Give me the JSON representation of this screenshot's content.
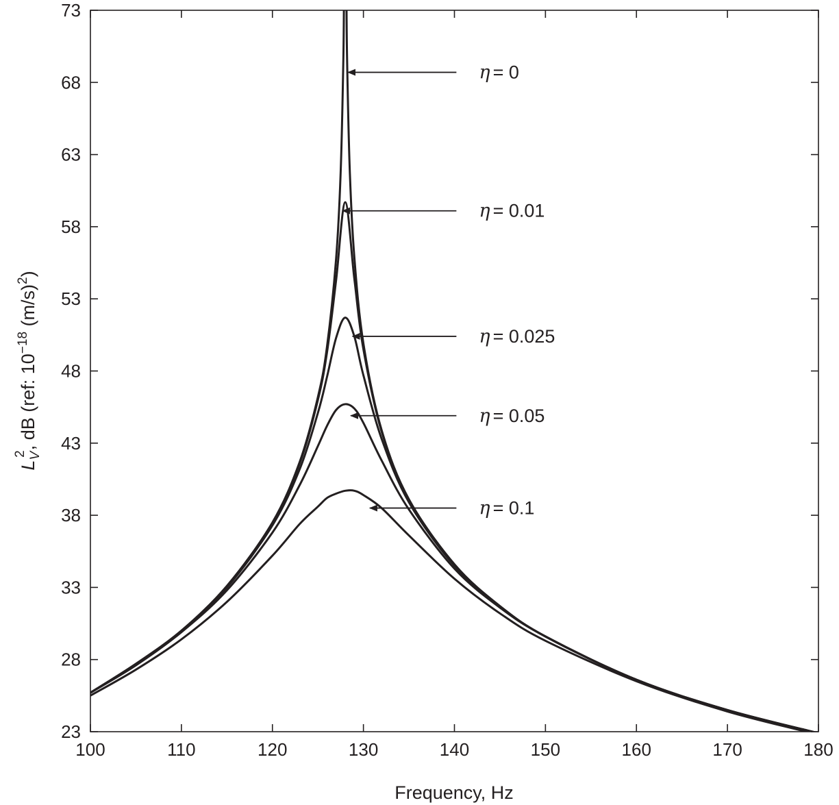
{
  "chart_data": {
    "type": "line",
    "title": "",
    "xlabel": "Frequency, Hz",
    "ylabel_parts": {
      "symbol": "L",
      "sub": "V",
      "sup": "2",
      "text1": ", dB (ref: 10",
      "exp": "−18",
      "text2": " (m/s)",
      "sup2": "2",
      "text3": ")"
    },
    "xlim": [
      100,
      180
    ],
    "ylim": [
      23,
      73
    ],
    "xticks": [
      100,
      110,
      120,
      130,
      140,
      150,
      160,
      170,
      180
    ],
    "yticks": [
      23,
      28,
      33,
      38,
      43,
      48,
      53,
      58,
      63,
      68,
      73
    ],
    "grid": false,
    "colors": {
      "line": "#231f20",
      "background": "#ffffff"
    },
    "series": [
      {
        "name": "η = 0",
        "x": [
          100,
          105,
          110,
          115,
          120,
          123,
          125,
          126,
          127,
          127.5,
          127.8,
          127.9,
          128.1,
          128.2,
          128.5,
          129,
          130,
          132,
          135,
          140,
          145,
          150,
          160,
          170,
          180
        ],
        "y": [
          25.7,
          27.7,
          30.0,
          33.1,
          37.5,
          41.7,
          46.2,
          49.7,
          55.8,
          61.8,
          69.8,
          75.8,
          75.8,
          69.8,
          61.9,
          55.9,
          49.9,
          43.9,
          39.1,
          34.6,
          31.7,
          29.6,
          26.6,
          24.5,
          22.9
        ]
      },
      {
        "name": "η = 0.01",
        "x": [
          100,
          105,
          110,
          115,
          120,
          123,
          125,
          126,
          127,
          128,
          129,
          130,
          132,
          135,
          140,
          145,
          150,
          160,
          170,
          180
        ],
        "y": [
          25.7,
          27.7,
          30.0,
          33.1,
          37.4,
          41.6,
          46.0,
          49.3,
          54.3,
          59.7,
          54.4,
          49.5,
          43.8,
          39.1,
          34.6,
          31.7,
          29.6,
          26.6,
          24.5,
          22.9
        ]
      },
      {
        "name": "η = 0.025",
        "x": [
          100,
          105,
          110,
          115,
          120,
          123,
          125,
          126,
          127,
          128,
          129,
          130,
          132,
          135,
          140,
          145,
          150,
          160,
          170,
          180
        ],
        "y": [
          25.7,
          27.7,
          30.0,
          33.0,
          37.3,
          41.2,
          45.1,
          47.6,
          50.3,
          51.7,
          50.4,
          47.7,
          43.3,
          38.9,
          34.5,
          31.7,
          29.6,
          26.6,
          24.5,
          22.9
        ]
      },
      {
        "name": "η = 0.05",
        "x": [
          100,
          105,
          110,
          115,
          120,
          123,
          125,
          126,
          127,
          128,
          129,
          130,
          132,
          135,
          140,
          145,
          150,
          160,
          170,
          180
        ],
        "y": [
          25.7,
          27.6,
          29.9,
          32.8,
          36.8,
          40.1,
          42.8,
          44.2,
          45.3,
          45.7,
          45.4,
          44.4,
          41.8,
          38.4,
          34.3,
          31.6,
          29.6,
          26.6,
          24.5,
          22.9
        ]
      },
      {
        "name": "η = 0.1",
        "x": [
          100,
          105,
          110,
          115,
          120,
          123,
          125,
          126,
          127,
          128,
          129,
          130,
          132,
          135,
          140,
          145,
          150,
          160,
          170,
          180
        ],
        "y": [
          25.5,
          27.3,
          29.4,
          32.0,
          35.2,
          37.4,
          38.6,
          39.2,
          39.5,
          39.7,
          39.7,
          39.4,
          38.5,
          36.6,
          33.6,
          31.2,
          29.3,
          26.5,
          24.4,
          22.8
        ]
      }
    ],
    "annotations": [
      {
        "symbol": "η",
        "value": "0",
        "text_at": [
          142.7,
          68.7
        ],
        "arrow_tip": [
          128.3,
          68.7
        ]
      },
      {
        "symbol": "η",
        "value": "0.01",
        "text_at": [
          142.7,
          59.1
        ],
        "arrow_tip": [
          127.7,
          59.1
        ]
      },
      {
        "symbol": "η",
        "value": "0.025",
        "text_at": [
          142.7,
          50.4
        ],
        "arrow_tip": [
          128.8,
          50.4
        ]
      },
      {
        "symbol": "η",
        "value": "0.05",
        "text_at": [
          142.7,
          44.9
        ],
        "arrow_tip": [
          128.6,
          44.9
        ]
      },
      {
        "symbol": "η",
        "value": "0.1",
        "text_at": [
          142.7,
          38.5
        ],
        "arrow_tip": [
          130.7,
          38.5
        ]
      }
    ]
  }
}
